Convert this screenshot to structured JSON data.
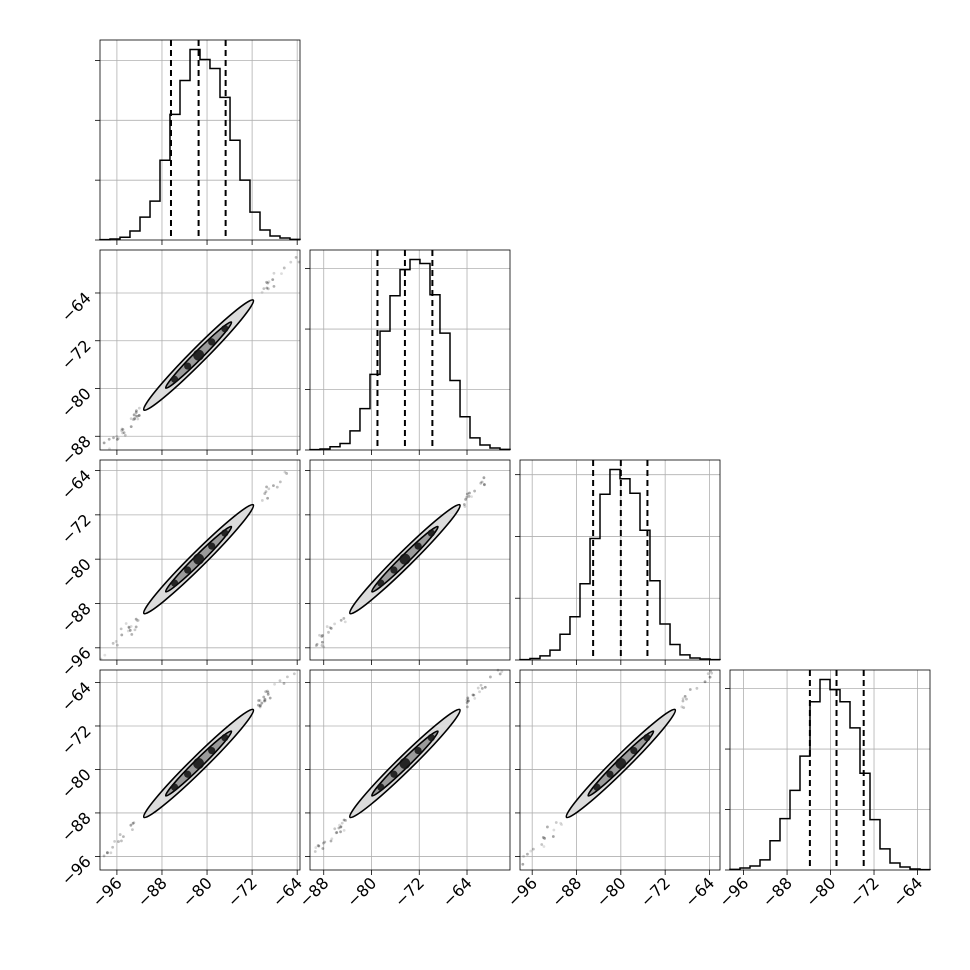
{
  "chart_data": {
    "type": "corner",
    "n_parameters": 4,
    "grid": true,
    "colors": {
      "line": "#000000",
      "grid": "#b0b0b0",
      "contour_outer_fill": "#dcdcdc",
      "contour_inner_fill": "#9a9a9a"
    },
    "quantile_style": "dashed",
    "parameters": [
      {
        "label": "",
        "range": [
          -99,
          -63.5
        ],
        "xticks": [
          "−96",
          "−88",
          "−80",
          "−72",
          "−64"
        ],
        "yticks": [],
        "quantiles": [
          -86.4,
          -81.5,
          -76.7
        ],
        "histogram": {
          "bin_edges": [
            -99.0,
            -97.22,
            -95.45,
            -93.68,
            -91.9,
            -90.12,
            -88.35,
            -86.58,
            -84.8,
            -83.02,
            -81.25,
            -79.48,
            -77.7,
            -75.92,
            -74.15,
            -72.38,
            -70.6,
            -68.82,
            -67.05,
            -65.28,
            -63.5
          ],
          "counts": [
            0.2,
            0.5,
            1.4,
            4.5,
            11.5,
            19.5,
            40.0,
            63.0,
            80.0,
            95.5,
            90.5,
            86.0,
            71.5,
            50.0,
            30.0,
            14.0,
            5.0,
            2.0,
            1.0,
            0.3
          ]
        }
      },
      {
        "label": "",
        "range": [
          -90.3,
          -56.8
        ],
        "xticks": [
          "−88",
          "−80",
          "−72",
          "−64"
        ],
        "yticks": [
          "−64",
          "−72",
          "−80",
          "−88"
        ],
        "quantiles": [
          -79.0,
          -74.4,
          -69.8
        ],
        "histogram": {
          "bin_edges": [
            -90.3,
            -88.62,
            -86.95,
            -85.27,
            -83.6,
            -81.93,
            -80.25,
            -78.57,
            -76.9,
            -75.22,
            -73.55,
            -71.88,
            -70.2,
            -68.53,
            -66.85,
            -65.17,
            -63.5,
            -61.83,
            -60.15,
            -58.48,
            -56.8
          ],
          "counts": [
            0.2,
            0.5,
            1.6,
            3.2,
            9.5,
            20.5,
            37.5,
            59.0,
            76.5,
            89.5,
            94.5,
            92.5,
            77.0,
            58.0,
            34.5,
            16.5,
            6.0,
            2.5,
            1.0,
            0.3
          ]
        }
      },
      {
        "label": "",
        "range": [
          -98.2,
          -62.1
        ],
        "xticks": [
          "−96",
          "−88",
          "−80",
          "−72",
          "−64"
        ],
        "yticks": [
          "−64",
          "−72",
          "−80",
          "−88",
          "−96"
        ],
        "quantiles": [
          -85.0,
          -80.0,
          -75.2
        ],
        "histogram": {
          "bin_edges": [
            -98.2,
            -96.4,
            -94.59,
            -92.79,
            -90.98,
            -89.18,
            -87.37,
            -85.56,
            -83.76,
            -81.96,
            -80.15,
            -78.35,
            -76.54,
            -74.74,
            -72.93,
            -71.12,
            -69.32,
            -67.52,
            -65.71,
            -63.9,
            -62.1
          ],
          "counts": [
            0.2,
            0.7,
            2.0,
            4.8,
            12.5,
            21.0,
            37.0,
            59.0,
            80.5,
            92.5,
            88.0,
            81.0,
            63.0,
            38.5,
            17.5,
            7.5,
            2.5,
            1.0,
            0.5,
            0.2
          ]
        }
      },
      {
        "label": "",
        "range": [
          -98.5,
          -61.7
        ],
        "xticks": [
          "−96",
          "−88",
          "−80",
          "−72",
          "−64"
        ],
        "yticks": [
          "−64",
          "−72",
          "−80",
          "−88",
          "−96"
        ],
        "quantiles": [
          -83.8,
          -78.9,
          -73.9
        ],
        "histogram": {
          "bin_edges": [
            -98.5,
            -96.66,
            -94.82,
            -92.98,
            -91.14,
            -89.3,
            -87.46,
            -85.62,
            -83.78,
            -81.94,
            -80.1,
            -78.26,
            -76.42,
            -74.58,
            -72.74,
            -70.9,
            -69.06,
            -67.22,
            -65.38,
            -63.54,
            -61.7
          ],
          "counts": [
            0.3,
            1.0,
            2.0,
            5.0,
            14.5,
            25.5,
            39.5,
            56.5,
            83.5,
            94.5,
            89.5,
            83.5,
            70.5,
            48.0,
            25.0,
            10.5,
            3.5,
            1.5,
            0.5,
            0.2
          ]
        }
      }
    ],
    "correlation": 0.995
  }
}
